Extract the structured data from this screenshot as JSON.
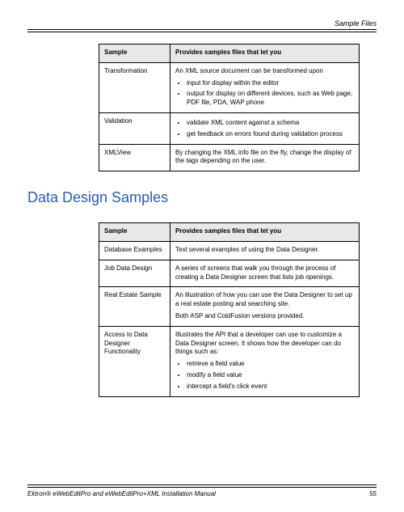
{
  "header": {
    "section_name": "Sample Files"
  },
  "table1": {
    "headers": [
      "Sample",
      "Provides samples files that let you"
    ],
    "rows": [
      {
        "sample": "Transformation",
        "intro": "An XML source document can be transformed upon",
        "bullets": [
          "input for display within the editor",
          "output for display on different devices, such as Web page, PDF file, PDA, WAP phone"
        ]
      },
      {
        "sample": "Validation",
        "bullets": [
          "validate XML content against a schema",
          "get feedback on errors found during validation process"
        ]
      },
      {
        "sample": "XMLView",
        "para": "By changing the XML info file on the fly, change the display of the tags depending on the user."
      }
    ]
  },
  "heading": "Data Design Samples",
  "table2": {
    "headers": [
      "Sample",
      "Provides samples files that let you"
    ],
    "rows": [
      {
        "sample": "Database Examples",
        "para": "Test several examples of using the Data Designer."
      },
      {
        "sample": "Job Data Design",
        "para": "A series of screens that walk you through the process of creating a Data Designer screen that lists job openings."
      },
      {
        "sample": "Real Estate Sample",
        "para": "An illustration of how you can use the Data Designer to set up a real estate posting and searching site.",
        "para2": "Both ASP and ColdFusion versions provided."
      },
      {
        "sample": "Access to Data Designer Functionality",
        "para": "Illustrates the API that a developer can use to customize a Data Designer screen. It shows how the developer can do things such as:",
        "bullets": [
          "retrieve a field value",
          "modify a field value",
          "intercept a field's click event"
        ]
      }
    ]
  },
  "footer": {
    "title": "Ektron® eWebEditPro and eWebEditPro+XML Installation Manual",
    "page": "55"
  }
}
